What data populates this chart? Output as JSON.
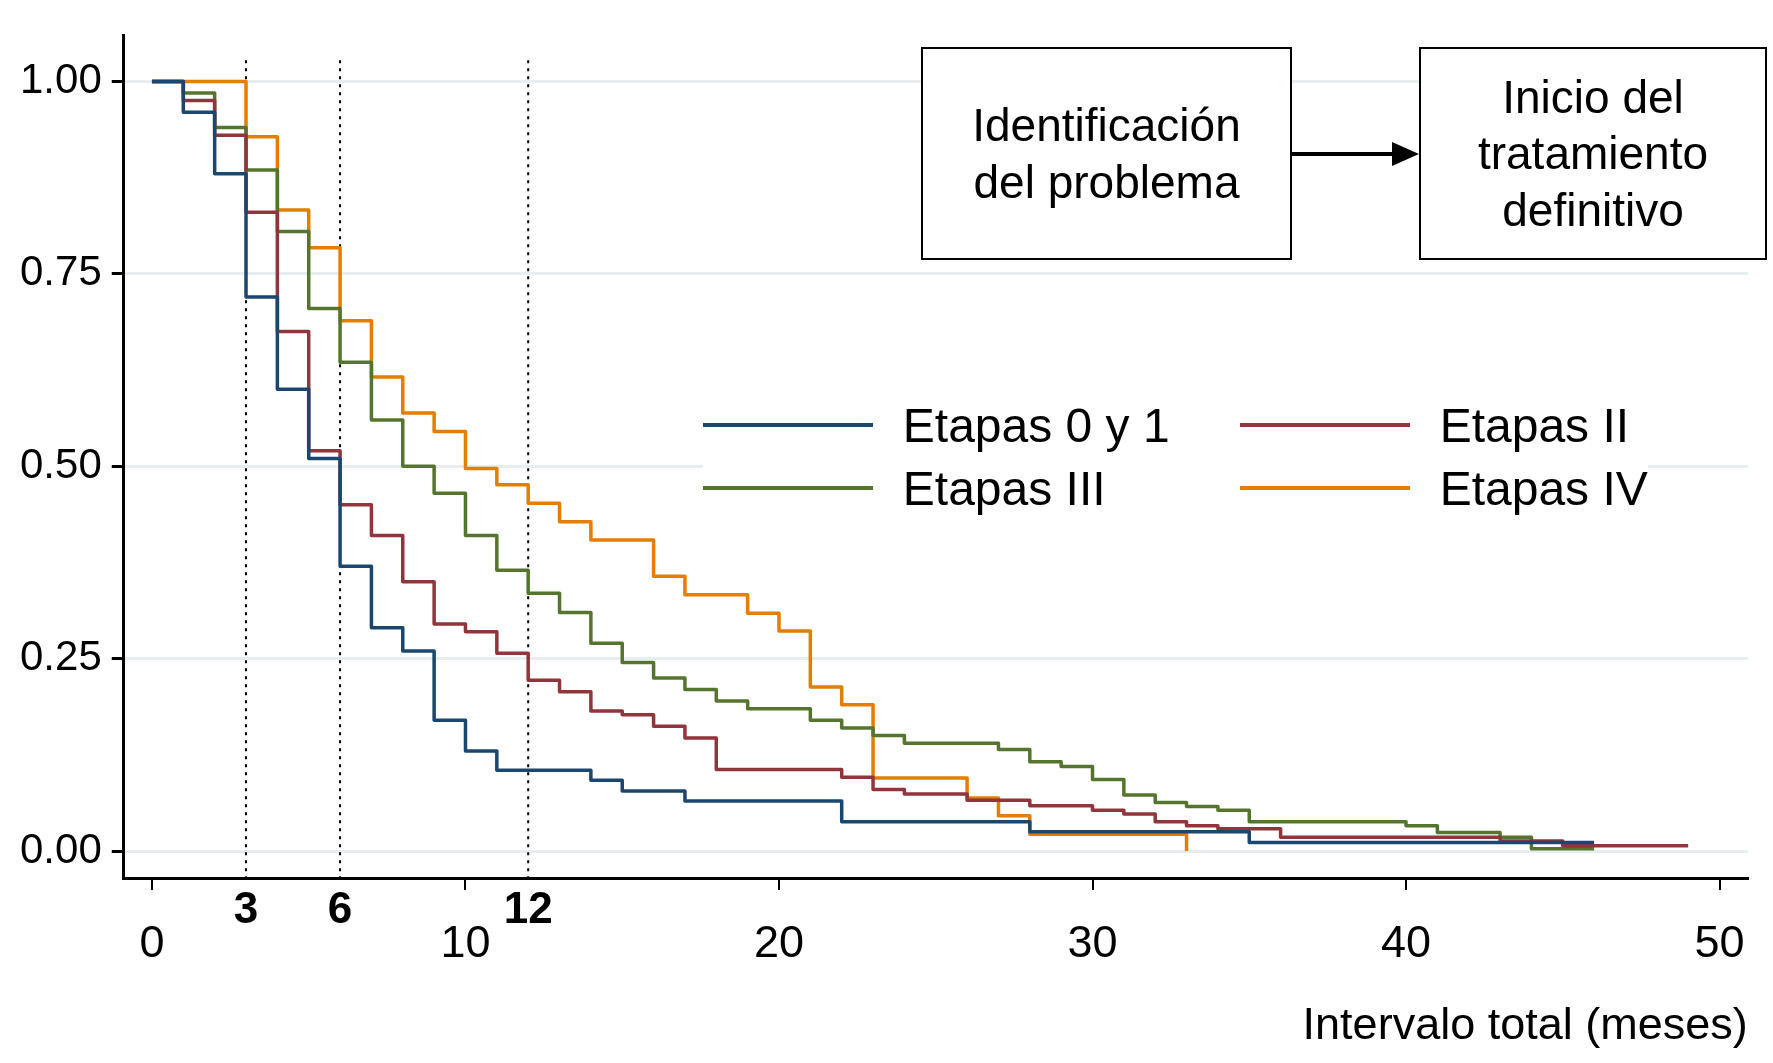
{
  "chart_data": {
    "type": "step",
    "xlabel": "Intervalo total (meses)",
    "xlim": [
      -0.9,
      50.9
    ],
    "xticks": [
      0,
      10,
      20,
      30,
      40,
      50
    ],
    "ylim": [
      -0.035,
      1.06
    ],
    "yticks": [
      {
        "value": 0,
        "label": "0.00"
      },
      {
        "value": 0.25,
        "label": "0.25"
      },
      {
        "value": 0.5,
        "label": "0.50"
      },
      {
        "value": 0.75,
        "label": "0.75"
      },
      {
        "value": 1,
        "label": "1.00"
      }
    ],
    "grid": "y",
    "legend": "right",
    "line_style": "solid",
    "marker": "none",
    "series": [
      {
        "name": "Etapas 0 y 1",
        "color": "#1a476f",
        "x": [
          0,
          1,
          2,
          3,
          4,
          5,
          6,
          7,
          8,
          9,
          10,
          11,
          14,
          15,
          17,
          22,
          28,
          35,
          46
        ],
        "values": [
          1,
          0.96,
          0.88,
          0.72,
          0.6,
          0.51,
          0.37,
          0.29,
          0.26,
          0.17,
          0.13,
          0.105,
          0.092,
          0.078,
          0.065,
          0.038,
          0.025,
          0.011,
          0.011
        ]
      },
      {
        "name": "Etapas II",
        "color": "#90353b",
        "x": [
          0,
          1,
          2,
          3,
          4,
          5,
          6,
          7,
          8,
          9,
          10,
          11,
          12,
          13,
          14,
          15,
          16,
          17,
          18,
          22,
          23,
          24,
          26,
          28,
          30,
          31,
          32,
          33,
          34,
          36,
          43,
          45,
          49
        ],
        "values": [
          1,
          0.975,
          0.93,
          0.83,
          0.675,
          0.52,
          0.45,
          0.41,
          0.35,
          0.295,
          0.285,
          0.257,
          0.222,
          0.207,
          0.182,
          0.177,
          0.162,
          0.147,
          0.106,
          0.096,
          0.08,
          0.074,
          0.066,
          0.059,
          0.053,
          0.048,
          0.038,
          0.033,
          0.029,
          0.018,
          0.013,
          0.007,
          0.007
        ]
      },
      {
        "name": "Etapas III",
        "color": "#55752f",
        "x": [
          0,
          1,
          2,
          3,
          4,
          5,
          6,
          7,
          8,
          9,
          10,
          11,
          12,
          13,
          14,
          15,
          16,
          17,
          18,
          19,
          21,
          22,
          23,
          24,
          27,
          28,
          29,
          30,
          31,
          32,
          33,
          34,
          35,
          40,
          41,
          43,
          44,
          46
        ],
        "values": [
          1,
          0.985,
          0.94,
          0.885,
          0.805,
          0.705,
          0.635,
          0.56,
          0.5,
          0.465,
          0.41,
          0.365,
          0.335,
          0.31,
          0.27,
          0.245,
          0.225,
          0.21,
          0.195,
          0.185,
          0.17,
          0.16,
          0.15,
          0.14,
          0.132,
          0.116,
          0.11,
          0.093,
          0.073,
          0.063,
          0.058,
          0.053,
          0.038,
          0.033,
          0.024,
          0.018,
          0.003,
          0.003
        ]
      },
      {
        "name": "Etapas IV",
        "color": "#e37e00",
        "x": [
          0,
          3,
          4,
          5,
          6,
          7,
          8,
          9,
          10,
          11,
          12,
          13,
          14,
          16,
          17,
          19,
          20,
          21,
          22,
          23,
          26,
          27,
          28,
          33
        ],
        "values": [
          1,
          0.928,
          0.833,
          0.784,
          0.689,
          0.616,
          0.569,
          0.545,
          0.497,
          0.476,
          0.452,
          0.428,
          0.404,
          0.357,
          0.333,
          0.309,
          0.286,
          0.213,
          0.19,
          0.095,
          0.069,
          0.046,
          0.022,
          0
        ]
      }
    ],
    "ref_lines": [
      {
        "axis": "x",
        "value": 3,
        "label": "3",
        "line_style": "dotted"
      },
      {
        "axis": "x",
        "value": 6,
        "label": "6",
        "line_style": "dotted"
      },
      {
        "axis": "x",
        "value": 12,
        "label": "12",
        "line_style": "dotted"
      }
    ],
    "annotations": [
      "Identificación del problema",
      "Inicio del tratamiento definitivo"
    ]
  }
}
